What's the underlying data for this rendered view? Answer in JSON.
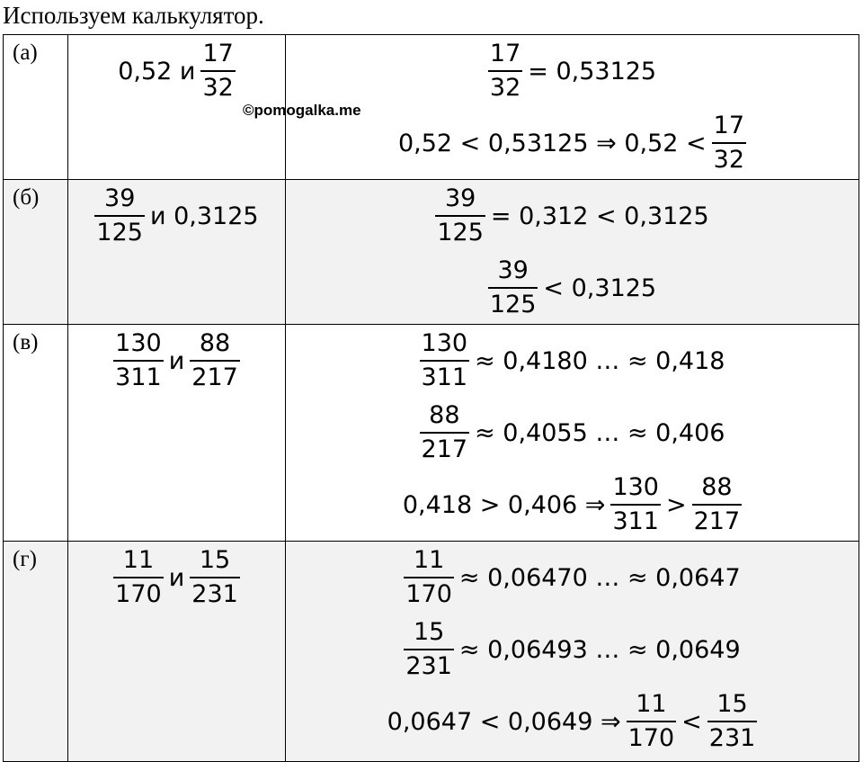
{
  "title": "Используем калькулятор.",
  "watermark": "©pomogalka.me",
  "table": {
    "rows": [
      {
        "label": "(а)",
        "pair": [
          "0,52 и",
          {
            "num": "17",
            "den": "32"
          }
        ],
        "lines": [
          [
            {
              "num": "17",
              "den": "32"
            },
            "= 0,53125"
          ],
          [
            "0,52 < 0,53125 ⇒ 0,52 <",
            {
              "num": "17",
              "den": "32"
            }
          ]
        ]
      },
      {
        "label": "(б)",
        "pair": [
          {
            "num": "39",
            "den": "125"
          },
          "и 0,3125"
        ],
        "lines": [
          [
            {
              "num": "39",
              "den": "125"
            },
            "= 0,312 < 0,3125"
          ],
          [
            {
              "num": "39",
              "den": "125"
            },
            "< 0,3125"
          ]
        ]
      },
      {
        "label": "(в)",
        "pair": [
          {
            "num": "130",
            "den": "311"
          },
          "и",
          {
            "num": "88",
            "den": "217"
          }
        ],
        "lines": [
          [
            {
              "num": "130",
              "den": "311"
            },
            "≈ 0,4180 … ≈ 0,418"
          ],
          [
            {
              "num": "88",
              "den": "217"
            },
            "≈ 0,4055 … ≈ 0,406"
          ],
          [
            "0,418 > 0,406 ⇒",
            {
              "num": "130",
              "den": "311"
            },
            ">",
            {
              "num": "88",
              "den": "217"
            }
          ]
        ]
      },
      {
        "label": "(г)",
        "pair": [
          {
            "num": "11",
            "den": "170"
          },
          "и",
          {
            "num": "15",
            "den": "231"
          }
        ],
        "lines": [
          [
            {
              "num": "11",
              "den": "170"
            },
            "≈ 0,06470 … ≈ 0,0647"
          ],
          [
            {
              "num": "15",
              "den": "231"
            },
            "≈ 0,06493 … ≈ 0,0649"
          ],
          [
            "0,0647 < 0,0649 ⇒",
            {
              "num": "11",
              "den": "170"
            },
            "<",
            {
              "num": "15",
              "den": "231"
            }
          ]
        ]
      }
    ]
  }
}
